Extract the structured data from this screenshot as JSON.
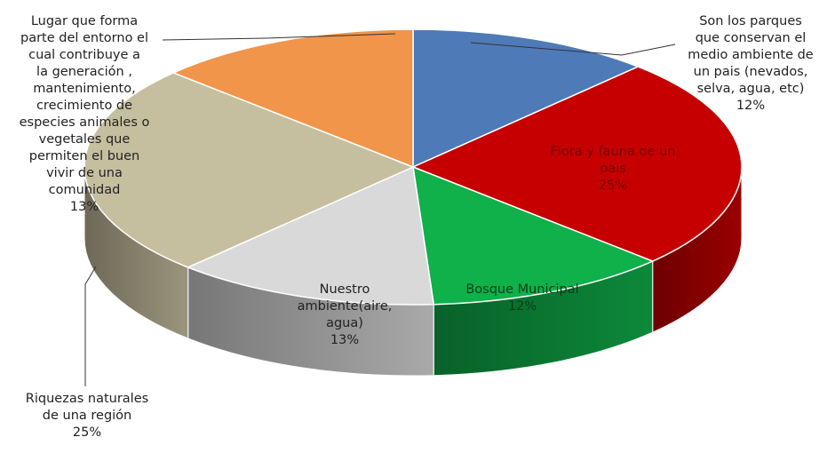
{
  "chart_data": {
    "type": "pie",
    "title": "",
    "slices": [
      {
        "label_lines": [
          "Son los parques",
          "que conservan el",
          "medio ambiente de",
          "un pais (nevados,",
          "selva, agua, etc)"
        ],
        "pct": "12%",
        "value": 12,
        "color": "#4f7ab8"
      },
      {
        "label_lines": [
          "Flora y fauna de un",
          "pais"
        ],
        "pct": "25%",
        "value": 25,
        "color": "#c60000"
      },
      {
        "label_lines": [
          "Bosque Municipal"
        ],
        "pct": "12%",
        "value": 12,
        "color": "#10b04a"
      },
      {
        "label_lines": [
          "Nuestro",
          "ambiente(aire,",
          "agua)"
        ],
        "pct": "13%",
        "value": 13,
        "color": "#d9d9d9"
      },
      {
        "label_lines": [
          "Riquezas naturales",
          "de una región"
        ],
        "pct": "25%",
        "value": 25,
        "color": "#c6bf9f"
      },
      {
        "label_lines": [
          "Lugar que forma",
          "parte del entorno el",
          "cual contribuye a",
          "la generación ,",
          "mantenimiento,",
          "crecimiento de",
          "especies animales o",
          "vegetales que",
          "permiten el buen",
          "vivir de una",
          "comunidad"
        ],
        "pct": "13%",
        "value": 13,
        "color": "#f0954a"
      }
    ]
  }
}
